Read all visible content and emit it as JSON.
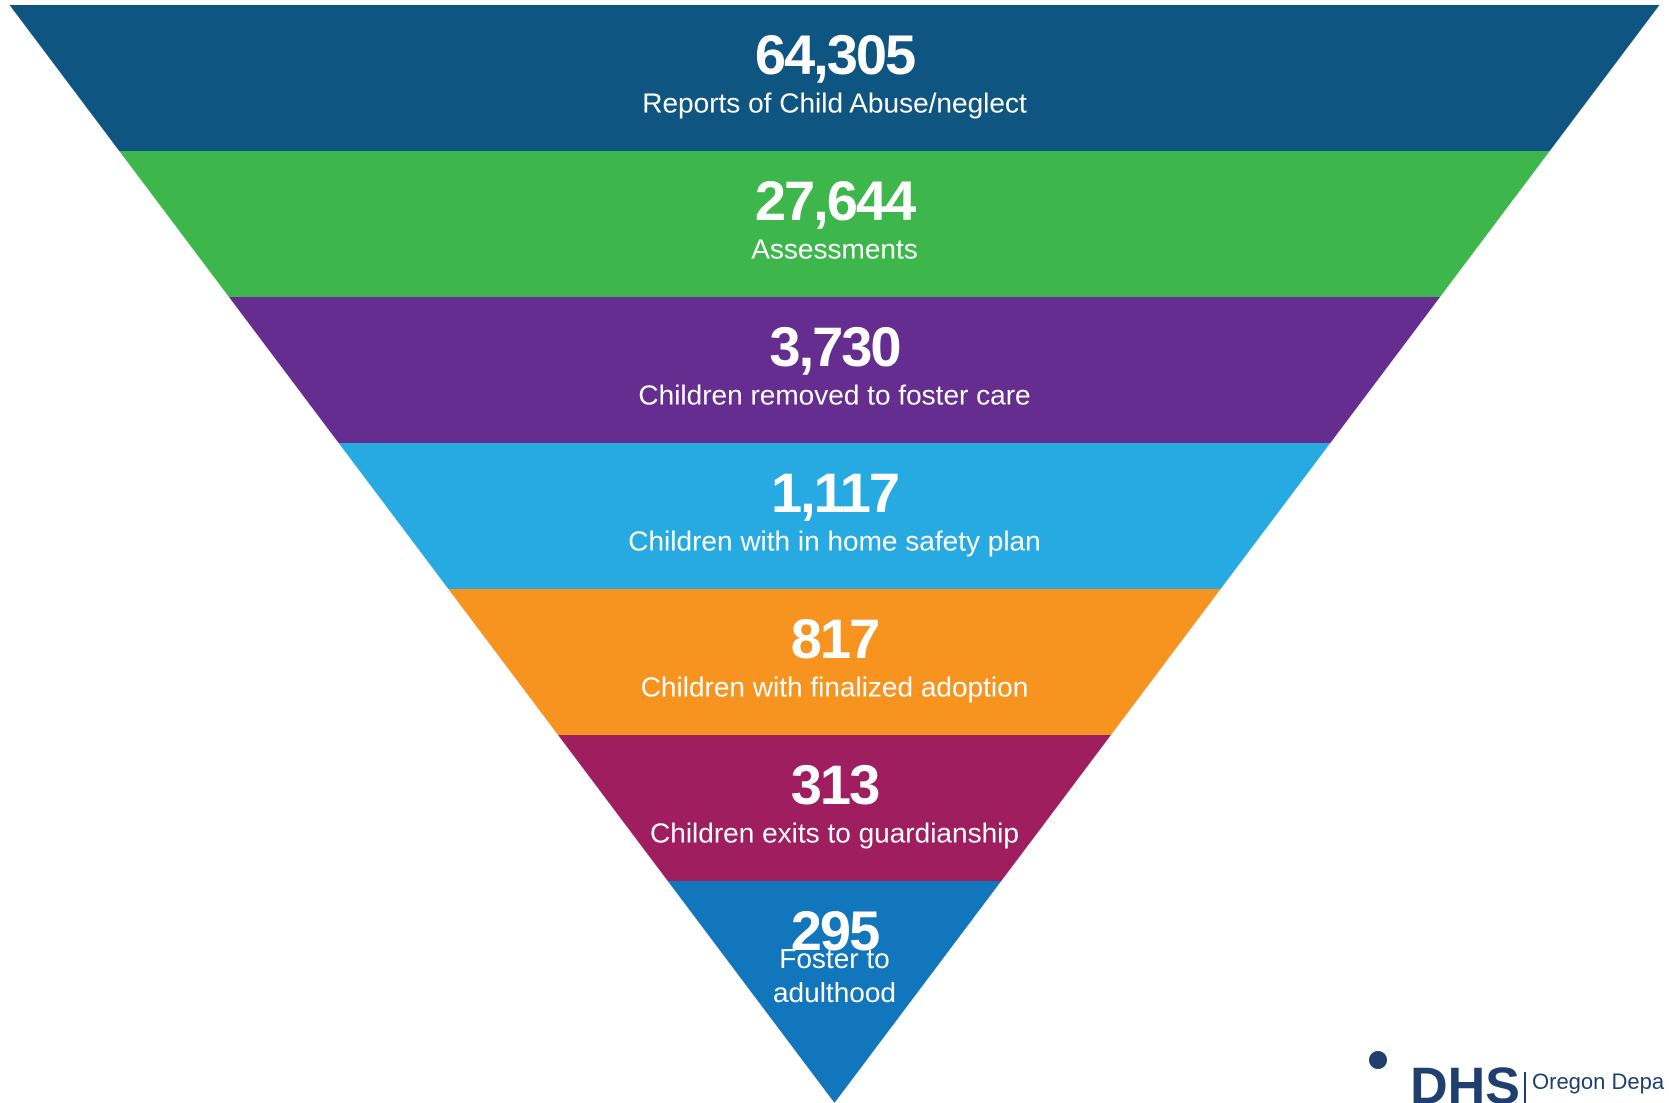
{
  "chart_data": {
    "type": "funnel",
    "categories": [
      "Reports of Child Abuse/neglect",
      "Assessments",
      "Children removed to foster care",
      "Children with in home safety plan",
      "Children with finalized adoption",
      "Children exits to guardianship",
      "Foster to\nadulthood"
    ],
    "values": [
      64305,
      27644,
      3730,
      1117,
      817,
      313,
      295
    ],
    "value_labels": [
      "64,305",
      "27,644",
      "3,730",
      "1,117",
      "817",
      "313",
      "295"
    ],
    "colors": [
      "#0f5581",
      "#3db74b",
      "#652d8f",
      "#27aae2",
      "#f6941f",
      "#9e1e5f",
      "#1176bc"
    ],
    "logo": {
      "mark": "DHS",
      "text": "Oregon Depa"
    }
  }
}
